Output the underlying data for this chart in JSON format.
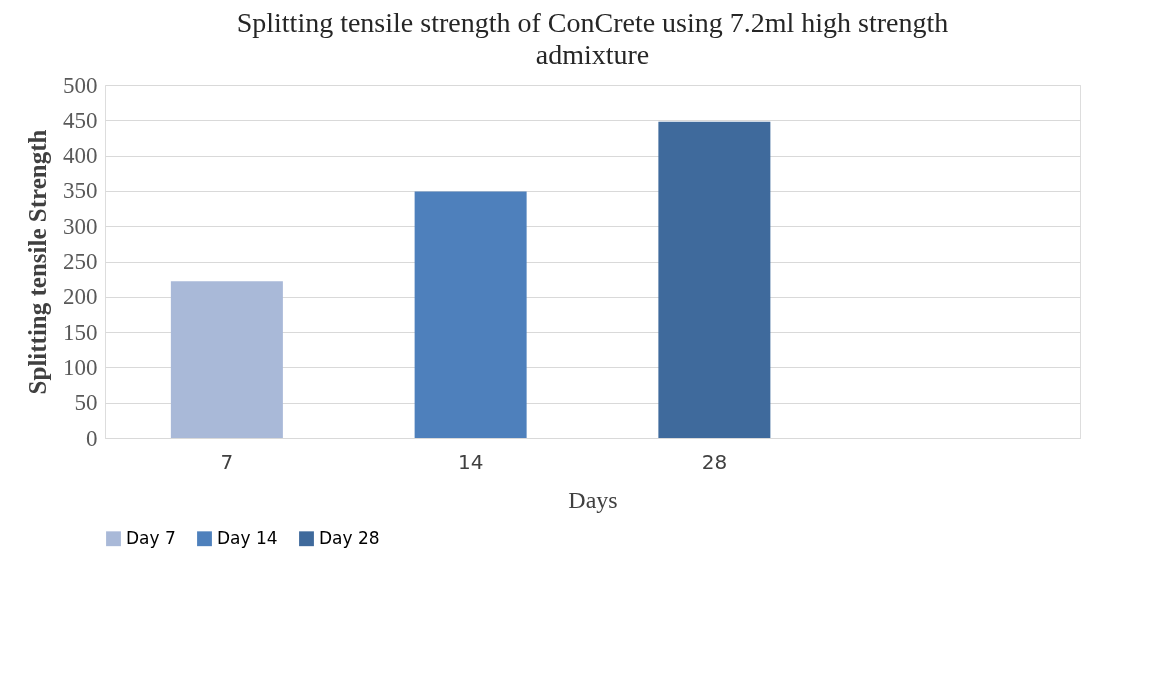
{
  "chart_data": {
    "type": "bar",
    "title": "Splitting tensile strength of ConCrete using 7.2ml high strength admixture",
    "xlabel": "Days",
    "ylabel": "Splitting tensile  Strength",
    "categories": [
      "7",
      "14",
      "28",
      null
    ],
    "series": [
      {
        "name": "Day 7",
        "color": "#a9b9d8",
        "values": [
          222,
          null,
          null,
          null
        ]
      },
      {
        "name": "Day 14",
        "color": "#4e80bc",
        "values": [
          null,
          349,
          null,
          null
        ]
      },
      {
        "name": "Day 28",
        "color": "#3f6a9c",
        "values": [
          null,
          null,
          448,
          null
        ]
      }
    ],
    "ylim": [
      0,
      500
    ],
    "yticks": [
      0,
      50,
      100,
      150,
      200,
      250,
      300,
      350,
      400,
      450,
      500
    ],
    "grid": "y",
    "legend": "bottom"
  }
}
